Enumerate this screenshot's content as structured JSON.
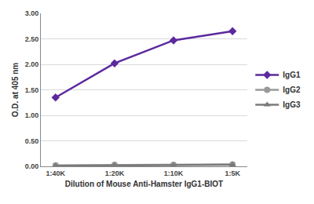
{
  "chart_data": {
    "type": "line",
    "x_label": "Dilution of Mouse Anti-Hamster IgG1-BIOT",
    "y_label": "O.D. at 405 nm",
    "categories": [
      "1:40K",
      "1:20K",
      "1:10K",
      "1:5K"
    ],
    "series": [
      {
        "name": "IgG1",
        "color": "#5b2a9e",
        "marker": "diamond",
        "values": [
          1.35,
          2.02,
          2.47,
          2.65
        ]
      },
      {
        "name": "IgG2",
        "color": "#9a9a9a",
        "marker": "circle",
        "values": [
          0.02,
          0.03,
          0.03,
          0.04
        ]
      },
      {
        "name": "IgG3",
        "color": "#7a7a7a",
        "marker": "triangle-up",
        "values": [
          0.01,
          0.02,
          0.02,
          0.03
        ]
      }
    ],
    "ylim": [
      0,
      3
    ],
    "yticks": [
      {
        "value": 0,
        "label": "0.00"
      },
      {
        "value": 0.5,
        "label": "0.50"
      },
      {
        "value": 1,
        "label": "1.00"
      },
      {
        "value": 1.5,
        "label": "1.50"
      },
      {
        "value": 2,
        "label": "2.00"
      },
      {
        "value": 2.5,
        "label": "2.50"
      },
      {
        "value": 3,
        "label": "3.00"
      }
    ],
    "grid": true,
    "legend": "right"
  }
}
